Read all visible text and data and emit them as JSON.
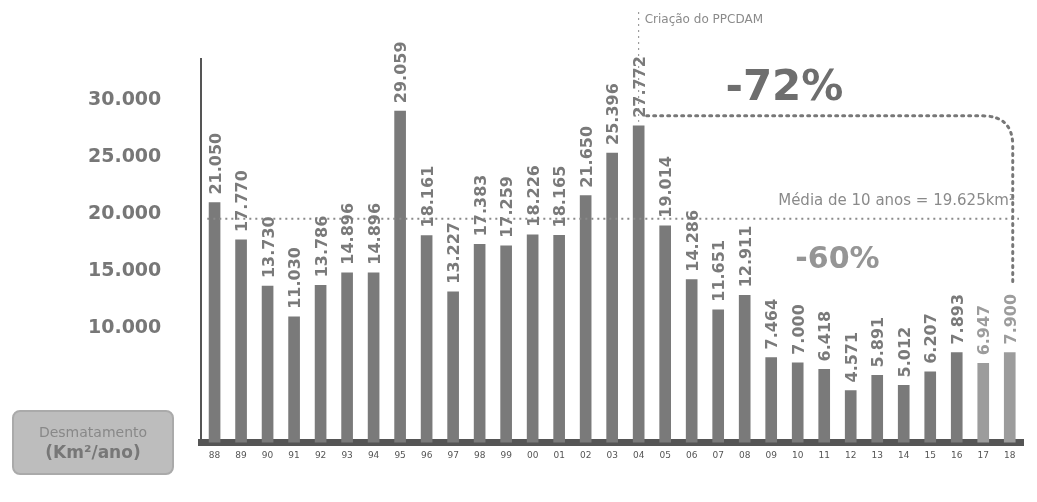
{
  "chart_data": {
    "type": "bar",
    "ylabel": "Desmatamento (Km²/ano)",
    "categories": [
      "88",
      "89",
      "90",
      "91",
      "92",
      "93",
      "94",
      "95",
      "96",
      "97",
      "98",
      "99",
      "00",
      "01",
      "02",
      "03",
      "04",
      "05",
      "06",
      "07",
      "08",
      "09",
      "10",
      "11",
      "12",
      "13",
      "14",
      "15",
      "16",
      "17",
      "18"
    ],
    "values": [
      21050,
      17770,
      13730,
      11030,
      13786,
      14896,
      14896,
      29059,
      18161,
      13227,
      17383,
      17259,
      18226,
      18165,
      21650,
      25396,
      27772,
      19014,
      14286,
      11651,
      12911,
      7464,
      7000,
      6418,
      4571,
      5891,
      5012,
      6207,
      7893,
      6947,
      7900
    ],
    "value_labels": [
      "21.050",
      "17.770",
      "13.730",
      "11.030",
      "13.786",
      "14.896",
      "14.896",
      "29.059",
      "18.161",
      "13.227",
      "17.383",
      "17.259",
      "18.226",
      "18.165",
      "21.650",
      "25.396",
      "27.772",
      "19.014",
      "14.286",
      "11.651",
      "12.911",
      "7.464",
      "7.000",
      "6.418",
      "4.571",
      "5.891",
      "5.012",
      "6.207",
      "7.893",
      "6.947",
      "7.900"
    ],
    "colors": [
      "#7a7a7a",
      "#7a7a7a",
      "#7a7a7a",
      "#7a7a7a",
      "#7a7a7a",
      "#7a7a7a",
      "#7a7a7a",
      "#7a7a7a",
      "#7a7a7a",
      "#7a7a7a",
      "#7a7a7a",
      "#7a7a7a",
      "#7a7a7a",
      "#7a7a7a",
      "#7a7a7a",
      "#7a7a7a",
      "#7a7a7a",
      "#7a7a7a",
      "#7a7a7a",
      "#7a7a7a",
      "#7a7a7a",
      "#7a7a7a",
      "#7a7a7a",
      "#7a7a7a",
      "#7a7a7a",
      "#7a7a7a",
      "#7a7a7a",
      "#7a7a7a",
      "#7a7a7a",
      "#9c9c9c",
      "#9c9c9c"
    ],
    "ylim": [
      0,
      33600
    ],
    "yticks": [
      {
        "value": 10000,
        "label": "10.000"
      },
      {
        "value": 15000,
        "label": "15.000"
      },
      {
        "value": 20000,
        "label": "20.000"
      },
      {
        "value": 25000,
        "label": "25.000"
      },
      {
        "value": 30000,
        "label": "30.000"
      }
    ],
    "grid": false,
    "legend": false,
    "ref_lines": [
      {
        "axis": "y",
        "value": 19625,
        "label": "Média de 10 anos = 19.625km²",
        "color": "#8a8a8a",
        "line_style": "dotted"
      },
      {
        "axis": "x",
        "value": "04",
        "label": "Criação do PPCDAM",
        "color": "#8a8a8a",
        "line_style": "dotted"
      }
    ],
    "annotations": [
      "-72%",
      "-60%"
    ]
  }
}
